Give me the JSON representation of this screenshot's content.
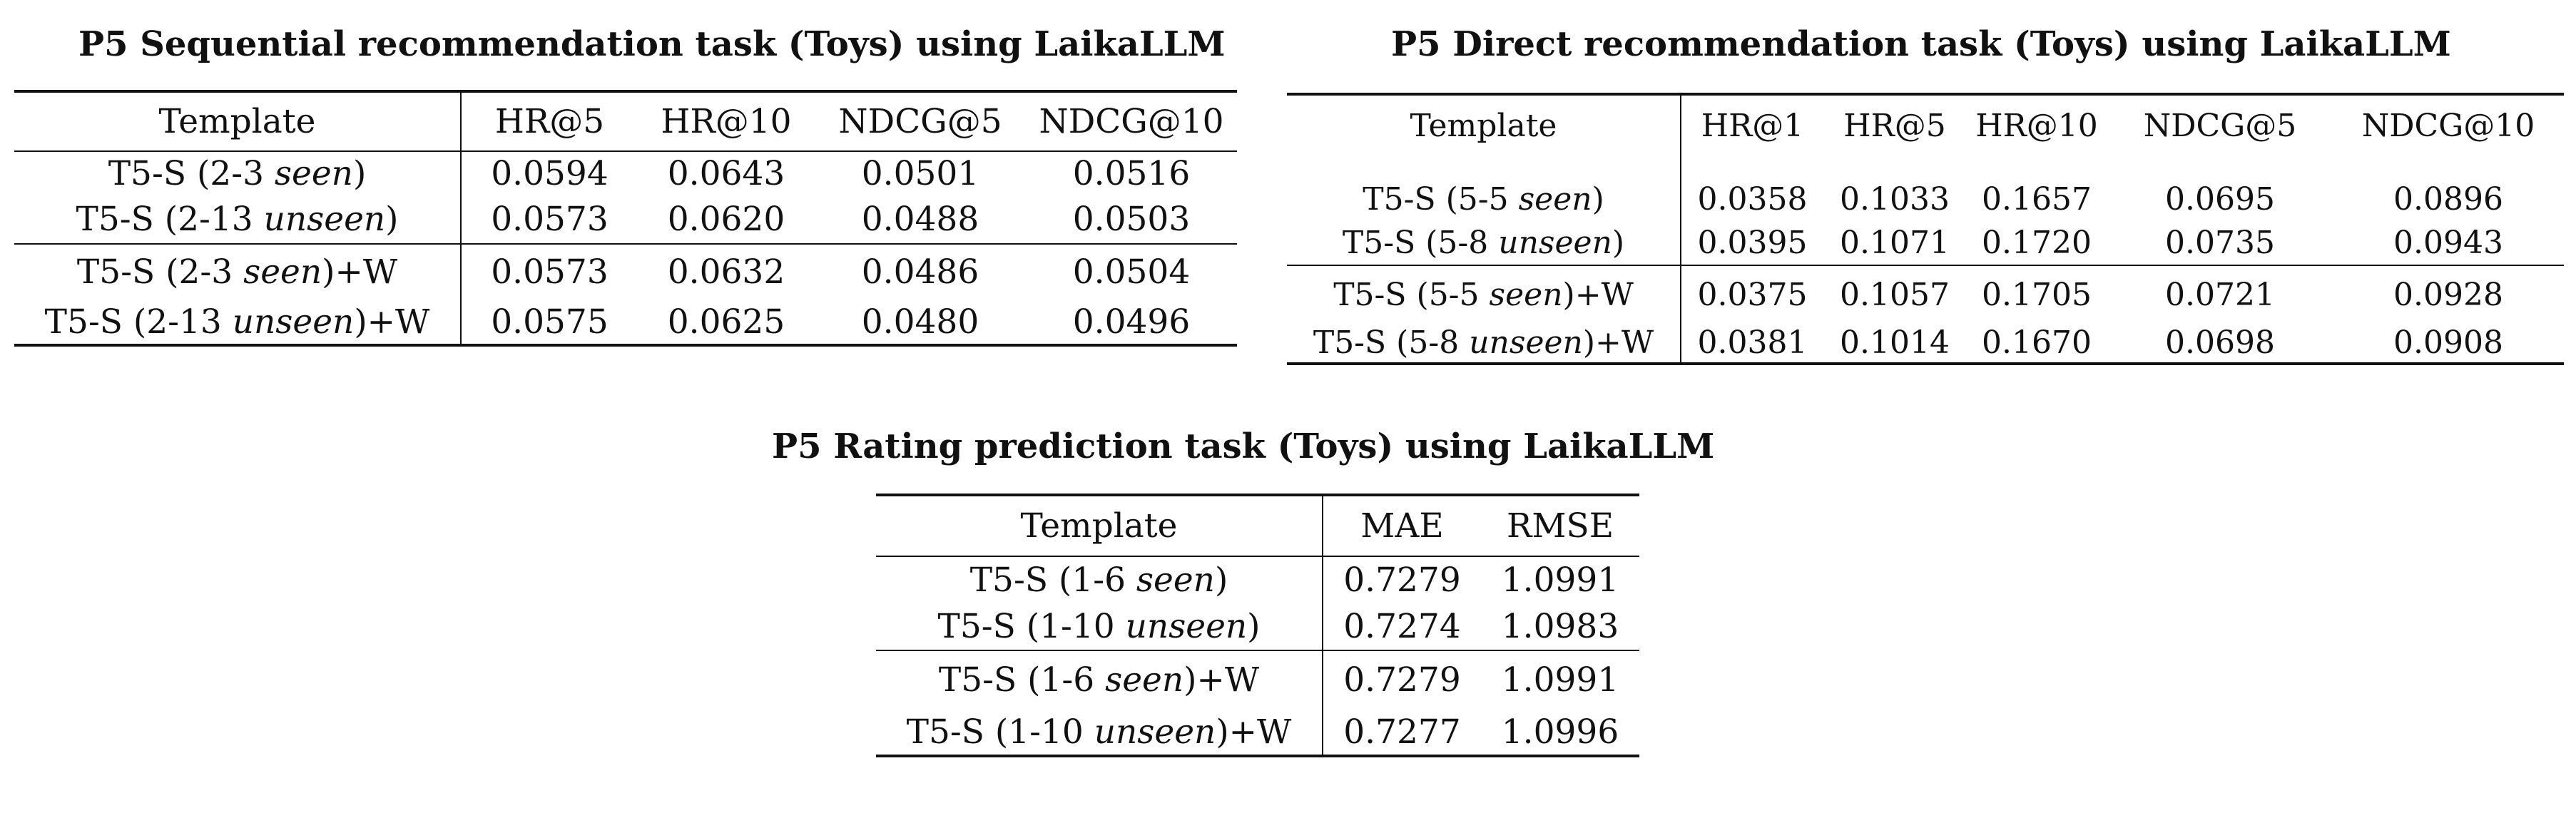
{
  "tables": [
    {
      "caption": "P5 Sequential recommendation task (Toys) using LaikaLLM",
      "columns": [
        "Template",
        "HR@5",
        "HR@10",
        "NDCG@5",
        "NDCG@10"
      ],
      "groups": [
        [
          {
            "prefix": "T5-S (2-3 ",
            "em": "seen",
            "suffix": ")",
            "values": [
              "0.0594",
              "0.0643",
              "0.0501",
              "0.0516"
            ]
          },
          {
            "prefix": "T5-S (2-13 ",
            "em": "unseen",
            "suffix": ")",
            "values": [
              "0.0573",
              "0.0620",
              "0.0488",
              "0.0503"
            ]
          }
        ],
        [
          {
            "prefix": "T5-S (2-3 ",
            "em": "seen",
            "suffix": ")+W",
            "values": [
              "0.0573",
              "0.0632",
              "0.0486",
              "0.0504"
            ]
          },
          {
            "prefix": "T5-S (2-13 ",
            "em": "unseen",
            "suffix": ")+W",
            "values": [
              "0.0575",
              "0.0625",
              "0.0480",
              "0.0496"
            ]
          }
        ]
      ]
    },
    {
      "caption": "P5 Direct recommendation task (Toys) using LaikaLLM",
      "columns": [
        "Template",
        "HR@1",
        "HR@5",
        "HR@10",
        "NDCG@5",
        "NDCG@10"
      ],
      "groups": [
        [
          {
            "prefix": "T5-S (5-5 ",
            "em": "seen",
            "suffix": ")",
            "values": [
              "0.0358",
              "0.1033",
              "0.1657",
              "0.0695",
              "0.0896"
            ]
          },
          {
            "prefix": "T5-S (5-8 ",
            "em": "unseen",
            "suffix": ")",
            "values": [
              "0.0395",
              "0.1071",
              "0.1720",
              "0.0735",
              "0.0943"
            ]
          }
        ],
        [
          {
            "prefix": "T5-S (5-5 ",
            "em": "seen",
            "suffix": ")+W",
            "values": [
              "0.0375",
              "0.1057",
              "0.1705",
              "0.0721",
              "0.0928"
            ]
          },
          {
            "prefix": "T5-S (5-8 ",
            "em": "unseen",
            "suffix": ")+W",
            "values": [
              "0.0381",
              "0.1014",
              "0.1670",
              "0.0698",
              "0.0908"
            ]
          }
        ]
      ]
    },
    {
      "caption": "P5 Rating prediction task (Toys) using LaikaLLM",
      "columns": [
        "Template",
        "MAE",
        "RMSE"
      ],
      "groups": [
        [
          {
            "prefix": "T5-S (1-6 ",
            "em": "seen",
            "suffix": ")",
            "values": [
              "0.7279",
              "1.0991"
            ]
          },
          {
            "prefix": "T5-S (1-10 ",
            "em": "unseen",
            "suffix": ")",
            "values": [
              "0.7274",
              "1.0983"
            ]
          }
        ],
        [
          {
            "prefix": "T5-S (1-6 ",
            "em": "seen",
            "suffix": ")+W",
            "values": [
              "0.7279",
              "1.0991"
            ]
          },
          {
            "prefix": "T5-S (1-10 ",
            "em": "unseen",
            "suffix": ")+W",
            "values": [
              "0.7277",
              "1.0996"
            ]
          }
        ]
      ]
    }
  ]
}
